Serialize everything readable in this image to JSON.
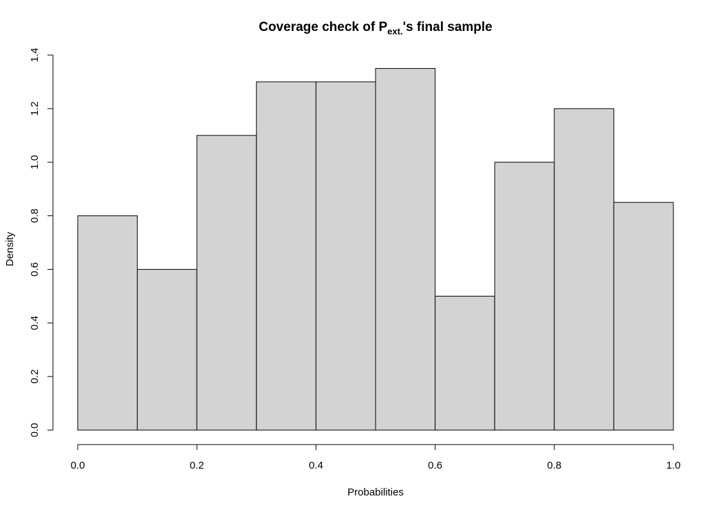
{
  "chart_data": {
    "type": "bar",
    "histogram": true,
    "title": {
      "prefix": "Coverage check of P",
      "subscript": "ext.",
      "suffix": "'s final sample"
    },
    "xlabel": "Probabilities",
    "ylabel": "Density",
    "bins": [
      {
        "from": 0.0,
        "to": 0.1,
        "density": 0.8
      },
      {
        "from": 0.1,
        "to": 0.2,
        "density": 0.6
      },
      {
        "from": 0.2,
        "to": 0.3,
        "density": 1.1
      },
      {
        "from": 0.3,
        "to": 0.4,
        "density": 1.3
      },
      {
        "from": 0.4,
        "to": 0.5,
        "density": 1.3
      },
      {
        "from": 0.5,
        "to": 0.6,
        "density": 1.35
      },
      {
        "from": 0.6,
        "to": 0.7,
        "density": 0.5
      },
      {
        "from": 0.7,
        "to": 0.8,
        "density": 1.0
      },
      {
        "from": 0.8,
        "to": 0.9,
        "density": 1.2
      },
      {
        "from": 0.9,
        "to": 1.0,
        "density": 0.85
      }
    ],
    "xlim": [
      0.0,
      1.0
    ],
    "ylim": [
      0.0,
      1.4
    ],
    "xticks": [
      "0.0",
      "0.2",
      "0.4",
      "0.6",
      "0.8",
      "1.0"
    ],
    "yticks": [
      "0.0",
      "0.2",
      "0.4",
      "0.6",
      "0.8",
      "1.0",
      "1.2",
      "1.4"
    ],
    "grid": false,
    "legend": "none",
    "bar_fill": "#d3d3d3",
    "bar_stroke": "#000000"
  }
}
